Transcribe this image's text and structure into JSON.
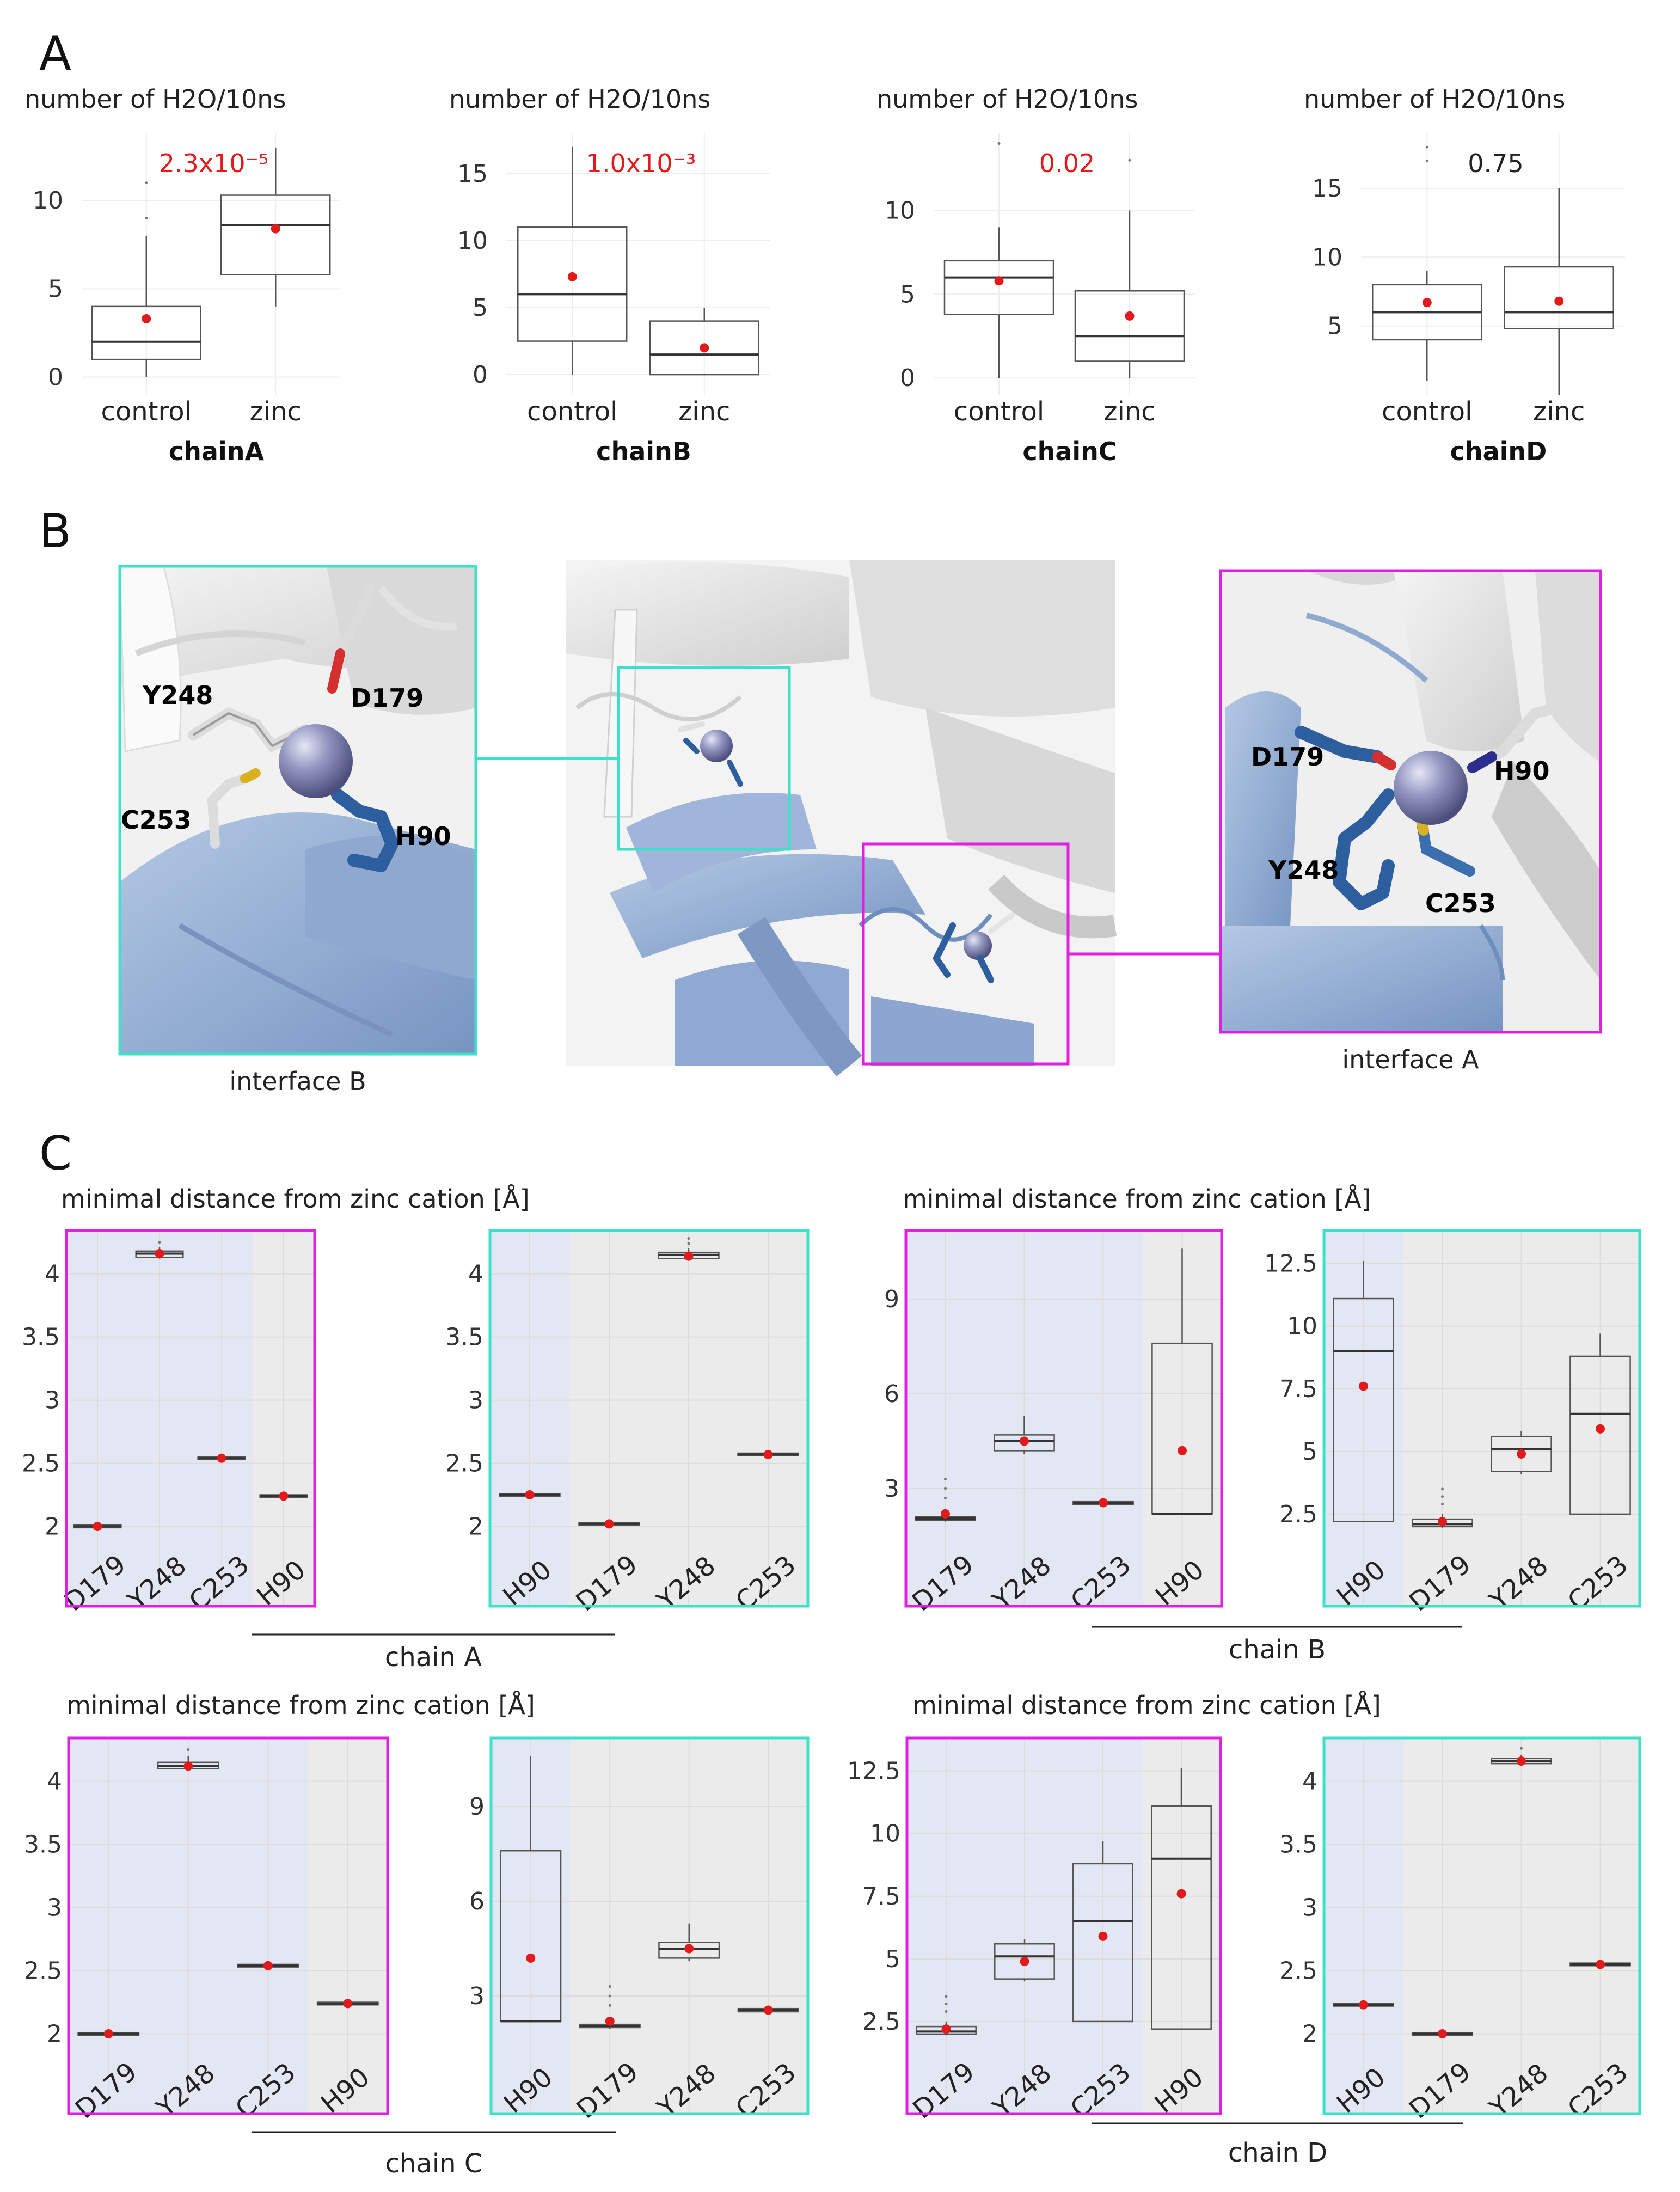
{
  "panel_letters": {
    "a": "A",
    "b": "B",
    "c": "C"
  },
  "colors": {
    "significant": "#e31a1c",
    "not_significant": "#222222",
    "mean_dot": "#e31a1c",
    "interface_a": "#e020e0",
    "interface_b": "#3de0c8",
    "blue_shade": "#e3e7f3",
    "grey_shade": "#ebebeb"
  },
  "panel_a": {
    "ylabel": "number of H2O/10ns",
    "charts": [
      {
        "chain": "chainA",
        "pvalue": "2.3x10⁻⁵",
        "significant": true,
        "ylim": [
          -1,
          13.8
        ],
        "yticks": [
          0,
          5,
          10
        ],
        "categories": [
          "control",
          "zinc"
        ],
        "boxes": [
          {
            "q1": 1,
            "median": 2,
            "q3": 4,
            "lo": 0,
            "hi": 8,
            "mean": 3.3,
            "outliers": [
              9,
              11
            ]
          },
          {
            "q1": 5.8,
            "median": 8.6,
            "q3": 10.3,
            "lo": 4,
            "hi": 13,
            "mean": 8.4,
            "outliers": []
          }
        ]
      },
      {
        "chain": "chainB",
        "pvalue": "1.0x10⁻³",
        "significant": true,
        "ylim": [
          -1.5,
          18
        ],
        "yticks": [
          0,
          5,
          10,
          15
        ],
        "categories": [
          "control",
          "zinc"
        ],
        "boxes": [
          {
            "q1": 2.5,
            "median": 6,
            "q3": 11,
            "lo": 0,
            "hi": 17,
            "mean": 7.3,
            "outliers": []
          },
          {
            "q1": 0,
            "median": 1.5,
            "q3": 4,
            "lo": 0,
            "hi": 5,
            "mean": 2,
            "outliers": []
          }
        ]
      },
      {
        "chain": "chainC",
        "pvalue": "0.02",
        "significant": true,
        "ylim": [
          -1,
          14.6
        ],
        "yticks": [
          0,
          5,
          10
        ],
        "categories": [
          "control",
          "zinc"
        ],
        "boxes": [
          {
            "q1": 3.8,
            "median": 6,
            "q3": 7,
            "lo": 0,
            "hi": 9,
            "mean": 5.8,
            "outliers": [
              14
            ]
          },
          {
            "q1": 1,
            "median": 2.5,
            "q3": 5.2,
            "lo": 0,
            "hi": 10,
            "mean": 3.7,
            "outliers": [
              13
            ]
          }
        ]
      },
      {
        "chain": "chainD",
        "pvalue": "0.75",
        "significant": false,
        "ylim": [
          0,
          19
        ],
        "yticks": [
          5,
          10,
          15
        ],
        "categories": [
          "control",
          "zinc"
        ],
        "boxes": [
          {
            "q1": 4,
            "median": 6,
            "q3": 8,
            "lo": 1,
            "hi": 9,
            "mean": 6.7,
            "outliers": [
              17,
              18
            ]
          },
          {
            "q1": 4.8,
            "median": 6,
            "q3": 9.3,
            "lo": 0,
            "hi": 15,
            "mean": 6.8,
            "outliers": []
          }
        ]
      }
    ]
  },
  "panel_b": {
    "captions": {
      "interface_b": "interface B",
      "interface_a": "interface A"
    },
    "labels_b": [
      "Y248",
      "D179",
      "C253",
      "H90"
    ],
    "labels_a": [
      "D179",
      "H90",
      "Y248",
      "C253"
    ]
  },
  "panel_c": {
    "ylabel": "minimal distance from zinc cation [Å]",
    "groups": [
      {
        "chain": "chain A",
        "plots": [
          {
            "frame": "interface_a",
            "ylim": [
              1.8,
              4.3
            ],
            "yticks": [
              2,
              2.5,
              3,
              3.5,
              4
            ],
            "categories": [
              "D179",
              "Y248",
              "C253",
              "H90"
            ],
            "shade": [
              "blue",
              "blue",
              "blue",
              "grey"
            ],
            "boxes": [
              {
                "q1": 1.99,
                "median": 2.0,
                "q3": 2.01,
                "lo": 1.99,
                "hi": 2.01,
                "mean": 2.0,
                "outliers": []
              },
              {
                "q1": 4.13,
                "median": 4.16,
                "q3": 4.18,
                "lo": 4.12,
                "hi": 4.21,
                "mean": 4.16,
                "outliers": [
                  4.25
                ]
              },
              {
                "q1": 2.53,
                "median": 2.54,
                "q3": 2.55,
                "lo": 2.53,
                "hi": 2.55,
                "mean": 2.54,
                "outliers": []
              },
              {
                "q1": 2.23,
                "median": 2.24,
                "q3": 2.25,
                "lo": 2.23,
                "hi": 2.25,
                "mean": 2.24,
                "outliers": []
              }
            ]
          },
          {
            "frame": "interface_b",
            "ylim": [
              1.8,
              4.3
            ],
            "yticks": [
              2,
              2.5,
              3,
              3.5,
              4
            ],
            "categories": [
              "H90",
              "D179",
              "Y248",
              "C253"
            ],
            "shade": [
              "blue",
              "grey",
              "grey",
              "grey"
            ],
            "boxes": [
              {
                "q1": 2.24,
                "median": 2.25,
                "q3": 2.26,
                "lo": 2.24,
                "hi": 2.26,
                "mean": 2.25,
                "outliers": []
              },
              {
                "q1": 2.01,
                "median": 2.02,
                "q3": 2.03,
                "lo": 2.01,
                "hi": 2.03,
                "mean": 2.02,
                "outliers": []
              },
              {
                "q1": 4.12,
                "median": 4.15,
                "q3": 4.17,
                "lo": 4.11,
                "hi": 4.2,
                "mean": 4.14,
                "outliers": [
                  4.24,
                  4.28
                ]
              },
              {
                "q1": 2.56,
                "median": 2.57,
                "q3": 2.58,
                "lo": 2.56,
                "hi": 2.58,
                "mean": 2.57,
                "outliers": []
              }
            ]
          }
        ]
      },
      {
        "chain": "chain B",
        "plots": [
          {
            "frame": "interface_a",
            "ylim": [
              1,
              11
            ],
            "yticks": [
              3,
              6,
              9
            ],
            "categories": [
              "D179",
              "Y248",
              "C253",
              "H90"
            ],
            "shade": [
              "blue",
              "blue",
              "blue",
              "grey"
            ],
            "boxes": [
              {
                "q1": 2.0,
                "median": 2.05,
                "q3": 2.1,
                "lo": 1.95,
                "hi": 2.3,
                "mean": 2.2,
                "outliers": [
                  2.7,
                  3.0,
                  3.3
                ]
              },
              {
                "q1": 4.2,
                "median": 4.5,
                "q3": 4.7,
                "lo": 4.1,
                "hi": 5.3,
                "mean": 4.5,
                "outliers": []
              },
              {
                "q1": 2.5,
                "median": 2.55,
                "q3": 2.6,
                "lo": 2.5,
                "hi": 2.6,
                "mean": 2.55,
                "outliers": []
              },
              {
                "q1": 2.2,
                "median": 2.2,
                "q3": 7.6,
                "lo": 2.2,
                "hi": 10.6,
                "mean": 4.2,
                "outliers": []
              }
            ]
          },
          {
            "frame": "interface_b",
            "ylim": [
              1,
              13.6
            ],
            "yticks": [
              2.5,
              5,
              7.5,
              10,
              12.5
            ],
            "categories": [
              "H90",
              "D179",
              "Y248",
              "C253"
            ],
            "shade": [
              "blue",
              "grey",
              "grey",
              "grey"
            ],
            "boxes": [
              {
                "q1": 2.2,
                "median": 9,
                "q3": 11.1,
                "lo": 2.2,
                "hi": 12.6,
                "mean": 7.6,
                "outliers": []
              },
              {
                "q1": 2.0,
                "median": 2.1,
                "q3": 2.3,
                "lo": 1.95,
                "hi": 2.5,
                "mean": 2.2,
                "outliers": [
                  2.9,
                  3.2,
                  3.5
                ]
              },
              {
                "q1": 4.2,
                "median": 5.1,
                "q3": 5.6,
                "lo": 4.1,
                "hi": 5.8,
                "mean": 4.9,
                "outliers": []
              },
              {
                "q1": 2.5,
                "median": 6.5,
                "q3": 8.8,
                "lo": 2.5,
                "hi": 9.7,
                "mean": 5.9,
                "outliers": []
              }
            ]
          }
        ]
      },
      {
        "chain": "chain C",
        "plots": [
          {
            "frame": "interface_a",
            "ylim": [
              1.8,
              4.3
            ],
            "yticks": [
              2,
              2.5,
              3,
              3.5,
              4
            ],
            "categories": [
              "D179",
              "Y248",
              "C253",
              "H90"
            ],
            "shade": [
              "blue",
              "blue",
              "blue",
              "grey"
            ],
            "boxes": [
              {
                "q1": 1.99,
                "median": 2.0,
                "q3": 2.01,
                "lo": 1.99,
                "hi": 2.01,
                "mean": 2.0,
                "outliers": []
              },
              {
                "q1": 4.1,
                "median": 4.12,
                "q3": 4.15,
                "lo": 4.08,
                "hi": 4.2,
                "mean": 4.12,
                "outliers": [
                  4.25
                ]
              },
              {
                "q1": 2.53,
                "median": 2.54,
                "q3": 2.55,
                "lo": 2.53,
                "hi": 2.55,
                "mean": 2.54,
                "outliers": []
              },
              {
                "q1": 2.23,
                "median": 2.24,
                "q3": 2.25,
                "lo": 2.23,
                "hi": 2.25,
                "mean": 2.24,
                "outliers": []
              }
            ]
          },
          {
            "frame": "interface_b",
            "ylim": [
              1,
              11
            ],
            "yticks": [
              3,
              6,
              9
            ],
            "categories": [
              "H90",
              "D179",
              "Y248",
              "C253"
            ],
            "shade": [
              "blue",
              "grey",
              "grey",
              "grey"
            ],
            "boxes": [
              {
                "q1": 2.2,
                "median": 2.2,
                "q3": 7.6,
                "lo": 2.2,
                "hi": 10.6,
                "mean": 4.2,
                "outliers": []
              },
              {
                "q1": 2.0,
                "median": 2.05,
                "q3": 2.1,
                "lo": 1.95,
                "hi": 2.3,
                "mean": 2.2,
                "outliers": [
                  2.7,
                  3.0,
                  3.3
                ]
              },
              {
                "q1": 4.2,
                "median": 4.5,
                "q3": 4.7,
                "lo": 4.1,
                "hi": 5.3,
                "mean": 4.5,
                "outliers": []
              },
              {
                "q1": 2.5,
                "median": 2.55,
                "q3": 2.6,
                "lo": 2.5,
                "hi": 2.6,
                "mean": 2.55,
                "outliers": []
              }
            ]
          }
        ]
      },
      {
        "chain": "chain D",
        "plots": [
          {
            "frame": "interface_a",
            "ylim": [
              1,
              13.6
            ],
            "yticks": [
              2.5,
              5,
              7.5,
              10,
              12.5
            ],
            "categories": [
              "D179",
              "Y248",
              "C253",
              "H90"
            ],
            "shade": [
              "blue",
              "blue",
              "blue",
              "grey"
            ],
            "boxes": [
              {
                "q1": 2.0,
                "median": 2.1,
                "q3": 2.3,
                "lo": 1.95,
                "hi": 2.5,
                "mean": 2.2,
                "outliers": [
                  2.9,
                  3.2,
                  3.5
                ]
              },
              {
                "q1": 4.2,
                "median": 5.1,
                "q3": 5.6,
                "lo": 4.1,
                "hi": 5.8,
                "mean": 4.9,
                "outliers": []
              },
              {
                "q1": 2.5,
                "median": 6.5,
                "q3": 8.8,
                "lo": 2.5,
                "hi": 9.7,
                "mean": 5.9,
                "outliers": []
              },
              {
                "q1": 2.2,
                "median": 9,
                "q3": 11.1,
                "lo": 2.2,
                "hi": 12.6,
                "mean": 7.6,
                "outliers": []
              }
            ]
          },
          {
            "frame": "interface_b",
            "ylim": [
              1.8,
              4.3
            ],
            "yticks": [
              2,
              2.5,
              3,
              3.5,
              4
            ],
            "categories": [
              "H90",
              "D179",
              "Y248",
              "C253"
            ],
            "shade": [
              "blue",
              "grey",
              "grey",
              "grey"
            ],
            "boxes": [
              {
                "q1": 2.22,
                "median": 2.23,
                "q3": 2.24,
                "lo": 2.22,
                "hi": 2.24,
                "mean": 2.23,
                "outliers": []
              },
              {
                "q1": 1.99,
                "median": 2.0,
                "q3": 2.01,
                "lo": 1.99,
                "hi": 2.01,
                "mean": 2.0,
                "outliers": []
              },
              {
                "q1": 4.14,
                "median": 4.16,
                "q3": 4.18,
                "lo": 4.12,
                "hi": 4.21,
                "mean": 4.16,
                "outliers": [
                  4.26
                ]
              },
              {
                "q1": 2.54,
                "median": 2.55,
                "q3": 2.56,
                "lo": 2.54,
                "hi": 2.56,
                "mean": 2.55,
                "outliers": []
              }
            ]
          }
        ]
      }
    ]
  }
}
